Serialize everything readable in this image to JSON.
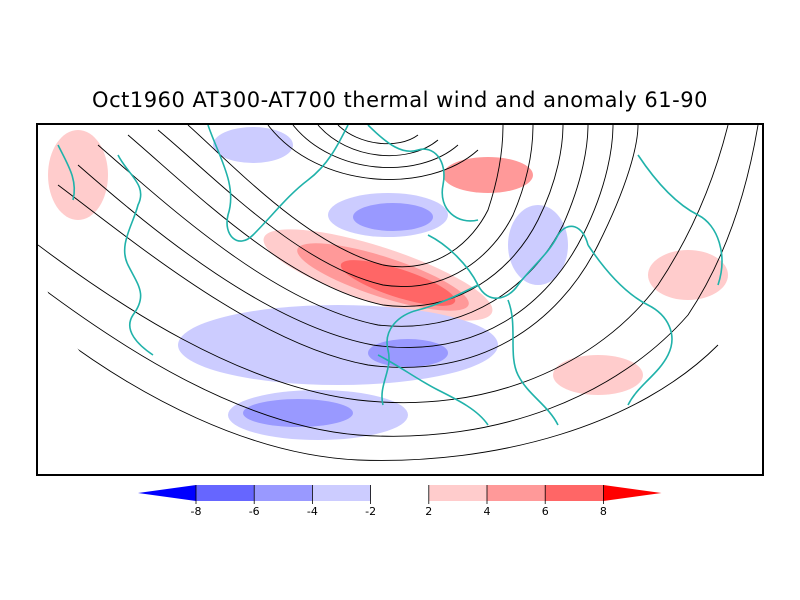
{
  "title": "Oct1960 AT300-AT700 thermal wind and anomaly 61-90",
  "colorbar": {
    "tick_labels": [
      "-8",
      "-6",
      "-4",
      "-2",
      "2",
      "4",
      "6",
      "8"
    ],
    "bins": [
      {
        "color": "#0000ff"
      },
      {
        "color": "#6666ff"
      },
      {
        "color": "#9999ff"
      },
      {
        "color": "#ccccff"
      },
      {
        "color": "#ffffff"
      },
      {
        "color": "#ffcccc"
      },
      {
        "color": "#ff9999"
      },
      {
        "color": "#ff6666"
      },
      {
        "color": "#ff0000"
      }
    ]
  },
  "colors": {
    "coastline": "#20b2aa",
    "streamline": "#000000",
    "positive_anomaly": "#ff0000",
    "negative_anomaly": "#0000ff"
  }
}
